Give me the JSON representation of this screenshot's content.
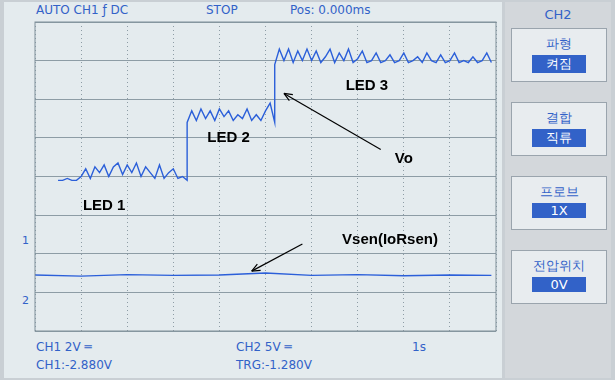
{
  "chart_data": {
    "type": "line",
    "series": [
      {
        "name": "Vo",
        "color": "#2b5fd9",
        "x": [
          0.5,
          0.6,
          0.7,
          0.8,
          0.9,
          1.0,
          1.1,
          1.2,
          1.3,
          1.4,
          1.5,
          1.6,
          1.7,
          1.8,
          1.9,
          2.0,
          2.1,
          2.2,
          2.3,
          2.4,
          2.5,
          2.6,
          2.7,
          2.8,
          2.9,
          3.0,
          3.1,
          3.2,
          3.3,
          3.3,
          3.4,
          3.5,
          3.6,
          3.7,
          3.8,
          3.9,
          4.0,
          4.1,
          4.2,
          4.3,
          4.4,
          4.5,
          4.6,
          4.7,
          4.8,
          4.9,
          5.0,
          5.1,
          5.2,
          5.2,
          5.3,
          5.4,
          5.5,
          5.6,
          5.7,
          5.8,
          5.9,
          6.0,
          6.1,
          6.2,
          6.3,
          6.4,
          6.5,
          6.6,
          6.7,
          6.8,
          6.9,
          7.0,
          7.1,
          7.2,
          7.3,
          7.4,
          7.5,
          7.6,
          7.7,
          7.8,
          7.9,
          8.0,
          8.1,
          8.2,
          8.3,
          8.4,
          8.5,
          8.6,
          8.7,
          8.8,
          8.9,
          9.0,
          9.1,
          9.2,
          9.3,
          9.4,
          9.5,
          9.6,
          9.7,
          9.8,
          9.9
        ],
        "values": [
          3.9,
          3.9,
          3.95,
          3.9,
          3.9,
          4.0,
          4.2,
          3.95,
          4.25,
          4.1,
          4.3,
          4.0,
          4.25,
          4.35,
          4.05,
          4.3,
          4.1,
          4.35,
          4.0,
          4.25,
          4.1,
          3.95,
          4.3,
          3.95,
          4.1,
          4.2,
          3.95,
          4.0,
          3.9,
          5.4,
          5.7,
          5.45,
          5.75,
          5.5,
          5.7,
          5.45,
          5.75,
          5.55,
          5.7,
          5.45,
          5.6,
          5.5,
          5.75,
          5.45,
          5.6,
          5.45,
          5.7,
          5.9,
          5.4,
          6.9,
          7.3,
          7.0,
          7.3,
          6.95,
          7.25,
          7.0,
          7.3,
          7.0,
          7.25,
          6.95,
          7.1,
          7.3,
          6.95,
          7.2,
          7.0,
          7.3,
          6.95,
          7.05,
          7.25,
          6.95,
          7.0,
          7.2,
          6.95,
          7.0,
          7.15,
          6.95,
          7.0,
          7.2,
          6.95,
          7.0,
          7.1,
          6.95,
          7.2,
          7.0,
          6.95,
          7.15,
          6.95,
          7.0,
          7.2,
          6.95,
          7.0,
          6.95,
          7.1,
          6.95,
          7.0,
          7.2,
          6.95
        ]
      },
      {
        "name": "Vsen(IoRsen)",
        "color": "#2b5fd9",
        "x": [
          0,
          1,
          2,
          3,
          4,
          5,
          6,
          7,
          8,
          9,
          9.9
        ],
        "values": [
          1.45,
          1.42,
          1.46,
          1.44,
          1.45,
          1.5,
          1.44,
          1.46,
          1.43,
          1.45,
          1.44
        ]
      }
    ],
    "annotations": [
      "LED 1",
      "LED 2",
      "LED 3",
      "Vo",
      "Vsen(IoRsen)"
    ],
    "xlim": [
      0,
      10
    ],
    "xticks": [
      0,
      1,
      2,
      3,
      4,
      5,
      6,
      7,
      8,
      9,
      10
    ],
    "ylim": [
      0,
      8
    ],
    "yticks": [
      0,
      1,
      2,
      3,
      4,
      5,
      6,
      7,
      8
    ],
    "grid": true,
    "tick_labels": false
  },
  "header": [
    "AUTO CH1 ƒ DC",
    "STOP",
    "Pos: 0.000ms"
  ],
  "markers": [
    "1",
    "2"
  ],
  "menu": {
    "title": "CH2",
    "items": [
      {
        "label": "파형",
        "value": "켜짐"
      },
      {
        "label": "결합",
        "value": "직류"
      },
      {
        "label": "프로브",
        "value": "1X"
      },
      {
        "label": "전압위치",
        "value": "0V"
      }
    ]
  },
  "footer": [
    [
      "CH1 2V ═",
      "CH2 5V ═",
      "1s"
    ],
    [
      "CH1:-2.880V",
      "TRG:-1.280V"
    ]
  ]
}
